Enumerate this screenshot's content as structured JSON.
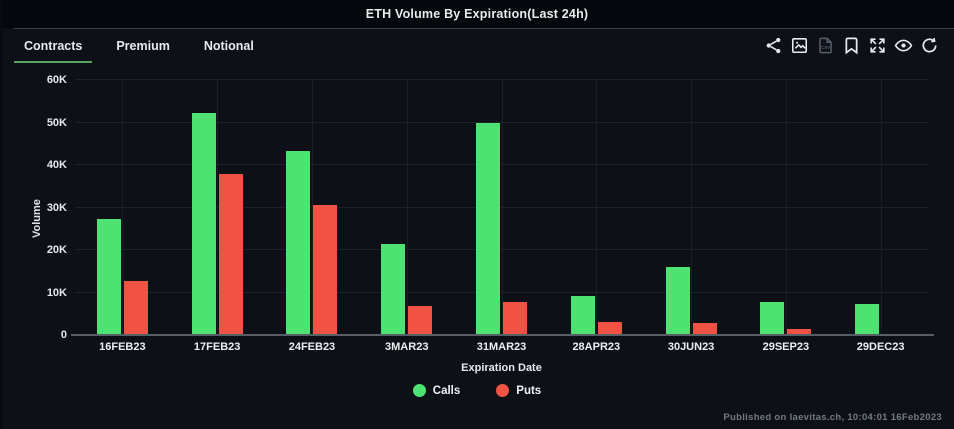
{
  "window": {
    "title": "ETH Volume By Expiration(Last 24h)"
  },
  "tabs": [
    {
      "label": "Contracts",
      "active": true
    },
    {
      "label": "Premium",
      "active": false
    },
    {
      "label": "Notional",
      "active": false
    }
  ],
  "toolbar": {
    "icons": [
      {
        "name": "share-icon",
        "disabled": false
      },
      {
        "name": "export-image-icon",
        "disabled": false
      },
      {
        "name": "export-csv-icon",
        "disabled": true
      },
      {
        "name": "bookmark-icon",
        "disabled": false
      },
      {
        "name": "fullscreen-icon",
        "disabled": false
      },
      {
        "name": "eye-icon",
        "disabled": false
      },
      {
        "name": "refresh-icon",
        "disabled": false
      }
    ]
  },
  "chart_data": {
    "type": "bar",
    "title": "ETH Volume By Expiration(Last 24h)",
    "categories": [
      "16FEB23",
      "17FEB23",
      "24FEB23",
      "3MAR23",
      "31MAR23",
      "28APR23",
      "30JUN23",
      "29SEP23",
      "29DEC23"
    ],
    "series": [
      {
        "name": "Calls",
        "color": "#4de271",
        "values": [
          27400,
          52300,
          43400,
          21400,
          49800,
          9100,
          15900,
          7700,
          7200
        ]
      },
      {
        "name": "Puts",
        "color": "#f05244",
        "values": [
          12800,
          37900,
          30600,
          6900,
          7800,
          3100,
          2900,
          1500,
          300
        ]
      }
    ],
    "xlabel": "Expiration Date",
    "ylabel": "Volume",
    "ylim": [
      0,
      60000
    ],
    "yticks": [
      "0",
      "10K",
      "20K",
      "30K",
      "40K",
      "50K",
      "60K"
    ],
    "grid": true,
    "legend_position": "bottom"
  },
  "footer": {
    "text": "Published on laevitas.ch, 10:04:01 16Feb2023"
  },
  "colors": {
    "background": "#0d1117",
    "title_bar": "#04070b",
    "calls_green": "#4de271",
    "puts_red": "#f05244",
    "active_tab_underline": "#5aa35f",
    "axis_line": "#565e66",
    "gridline": "#1b222a"
  }
}
